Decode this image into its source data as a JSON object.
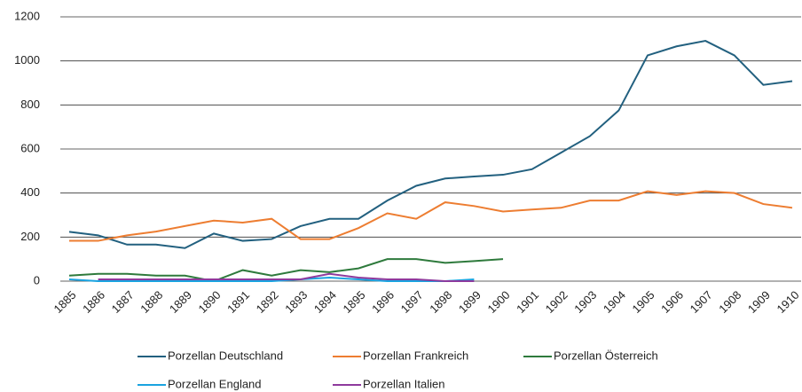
{
  "chart_data": {
    "type": "line",
    "categories": [
      "1885",
      "1886",
      "1887",
      "1888",
      "1889",
      "1890",
      "1891",
      "1892",
      "1893",
      "1894",
      "1895",
      "1896",
      "1897",
      "1898",
      "1899",
      "1900",
      "1901",
      "1902",
      "1903",
      "1904",
      "1905",
      "1906",
      "1907",
      "1908",
      "1909",
      "1910"
    ],
    "series": [
      {
        "name": "Porzellan Deutschland",
        "color": "#22607f",
        "values": [
          224,
          208,
          166,
          166,
          150,
          216,
          183,
          191,
          250,
          283,
          283,
          366,
          433,
          466,
          475,
          483,
          508,
          583,
          658,
          775,
          1025,
          1066,
          1091,
          1025,
          891,
          908
        ]
      },
      {
        "name": "Porzellan Frankreich",
        "color": "#ed7d31",
        "values": [
          183,
          183,
          208,
          225,
          250,
          275,
          266,
          283,
          191,
          191,
          241,
          308,
          283,
          358,
          341,
          316,
          325,
          333,
          366,
          366,
          408,
          391,
          408,
          400,
          350,
          333
        ]
      },
      {
        "name": "Porzellan Österreich",
        "color": "#2e7a3c",
        "values": [
          25,
          33,
          33,
          25,
          25,
          0,
          50,
          25,
          50,
          41,
          58,
          100,
          100,
          83,
          91,
          100,
          null,
          null,
          null,
          null,
          null,
          null,
          null,
          null,
          null,
          null
        ]
      },
      {
        "name": "Porzellan England",
        "color": "#1aa3e0",
        "values": [
          8,
          0,
          0,
          0,
          0,
          0,
          0,
          0,
          8,
          16,
          8,
          0,
          0,
          0,
          8,
          null,
          null,
          null,
          null,
          null,
          null,
          null,
          null,
          null,
          null,
          null
        ]
      },
      {
        "name": "Porzellan Italien",
        "color": "#8e3a9d",
        "values": [
          null,
          8,
          8,
          8,
          8,
          8,
          8,
          8,
          8,
          33,
          16,
          8,
          8,
          0,
          0,
          null,
          null,
          null,
          null,
          null,
          null,
          null,
          null,
          null,
          null,
          null
        ]
      }
    ],
    "ylim": [
      0,
      1200
    ],
    "yticks": [
      0,
      200,
      400,
      600,
      800,
      1000,
      1200
    ],
    "grid": true
  }
}
